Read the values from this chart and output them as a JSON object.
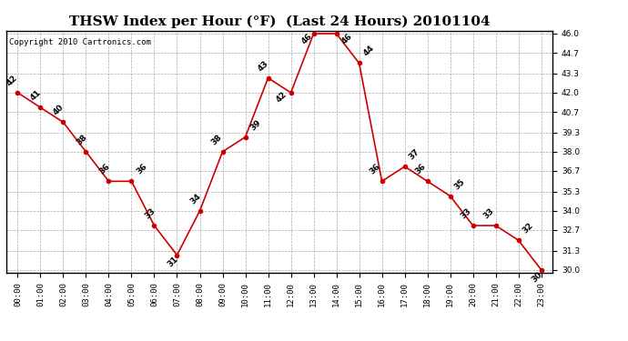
{
  "title": "THSW Index per Hour (°F)  (Last 24 Hours) 20101104",
  "copyright": "Copyright 2010 Cartronics.com",
  "hours": [
    "00:00",
    "01:00",
    "02:00",
    "03:00",
    "04:00",
    "05:00",
    "06:00",
    "07:00",
    "08:00",
    "09:00",
    "10:00",
    "11:00",
    "12:00",
    "13:00",
    "14:00",
    "15:00",
    "16:00",
    "17:00",
    "18:00",
    "19:00",
    "20:00",
    "21:00",
    "22:00",
    "23:00"
  ],
  "values": [
    42,
    41,
    40,
    38,
    36,
    36,
    33,
    31,
    34,
    38,
    39,
    43,
    42,
    46,
    46,
    44,
    36,
    37,
    36,
    35,
    33,
    33,
    32,
    30
  ],
  "ylim_min": 30.0,
  "ylim_max": 46.0,
  "yticks": [
    30.0,
    31.3,
    32.7,
    34.0,
    35.3,
    36.7,
    38.0,
    39.3,
    40.7,
    42.0,
    43.3,
    44.7,
    46.0
  ],
  "line_color": "#cc0000",
  "marker_color": "#cc0000",
  "bg_color": "#ffffff",
  "grid_color": "#aaaaaa",
  "title_fontsize": 11,
  "annotation_fontsize": 6.5,
  "copyright_fontsize": 6.5,
  "tick_fontsize": 6.5
}
